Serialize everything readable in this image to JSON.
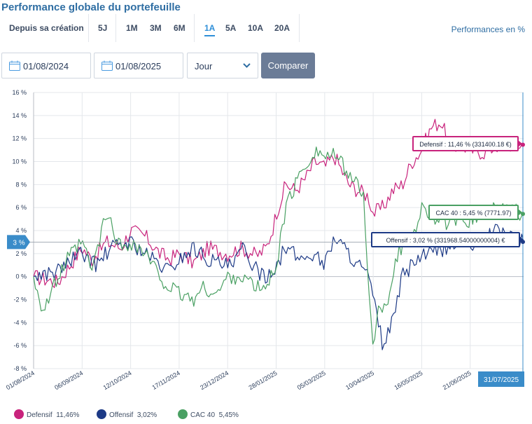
{
  "title": "Performance globale du portefeuille",
  "periods": [
    {
      "label": "Depuis sa création",
      "active": false
    },
    {
      "label": "5J",
      "active": false
    },
    {
      "label": "1M",
      "active": false
    },
    {
      "label": "3M",
      "active": false
    },
    {
      "label": "6M",
      "active": false
    },
    {
      "label": "1A",
      "active": true
    },
    {
      "label": "5A",
      "active": false
    },
    {
      "label": "10A",
      "active": false
    },
    {
      "label": "20A",
      "active": false
    }
  ],
  "perf_toggle": "Performances en %",
  "controls": {
    "start_date": "01/08/2024",
    "end_date": "01/08/2025",
    "granularity": "Jour",
    "compare_label": "Comparer"
  },
  "colors": {
    "defensif": "#c8237c",
    "offensif": "#1d3a86",
    "cac40": "#4aa063",
    "accent": "#2f8fd8",
    "crosshair": "#3a8cc9"
  },
  "crosshair": {
    "y_label": "3 %",
    "x_label": "31/07/2025"
  },
  "legend": [
    {
      "name": "Defensif",
      "value": "11,46%",
      "color": "#c8237c"
    },
    {
      "name": "Offensif",
      "value": "3,02%",
      "color": "#1d3a86"
    },
    {
      "name": "CAC 40",
      "value": "5,45%",
      "color": "#4aa063"
    }
  ],
  "chart_data": {
    "type": "line",
    "ylim": [
      -8,
      16
    ],
    "yticks": [
      -8,
      -6,
      -4,
      -2,
      0,
      2,
      4,
      6,
      8,
      10,
      12,
      14,
      16
    ],
    "ytick_labels": [
      "-8 %",
      "-6 %",
      "-4 %",
      "-2 %",
      "0 %",
      "2 %",
      "4 %",
      "6 %",
      "8 %",
      "10 %",
      "12 %",
      "14 %",
      "16 %"
    ],
    "x_categories": [
      "01/08/2024",
      "06/09/2024",
      "12/10/2024",
      "17/11/2024",
      "23/12/2024",
      "28/01/2025",
      "05/03/2025",
      "10/04/2025",
      "16/05/2025",
      "21/06/2025"
    ],
    "grid": true,
    "series": [
      {
        "name": "Defensif",
        "color": "#c8237c",
        "x": [
          0,
          0.5,
          1,
          1.2,
          1.5,
          1.8,
          2,
          2.3,
          2.6,
          2.8,
          3,
          3.3,
          3.6,
          4,
          4.3,
          4.6,
          4.8,
          4.95,
          5,
          5.2,
          5.4,
          5.6,
          5.8,
          6,
          6.2,
          6.5,
          6.7,
          6.9,
          7,
          7.2,
          7.4,
          7.6,
          7.8,
          8,
          8.2,
          8.4,
          8.6,
          8.8,
          9,
          9.3,
          9.6,
          10.1
        ],
        "values": [
          0,
          -0.5,
          2.5,
          1.5,
          3,
          2.5,
          4,
          3.5,
          2,
          1.5,
          2,
          1.2,
          2.5,
          2,
          2.5,
          1.8,
          2.5,
          4.5,
          5.5,
          8,
          7.5,
          8.5,
          10,
          9.5,
          10.5,
          8,
          7.5,
          7,
          5.5,
          6,
          7.5,
          8,
          10,
          11,
          13,
          13.5,
          11,
          11.5,
          11,
          10.8,
          11.5,
          11.46
        ]
      },
      {
        "name": "Offensif",
        "color": "#1d3a86",
        "x": [
          0,
          0.5,
          0.8,
          1,
          1.3,
          1.6,
          2,
          2.3,
          2.6,
          2.8,
          3,
          3.3,
          3.6,
          3.9,
          4.1,
          4.3,
          4.6,
          4.8,
          5,
          5.2,
          5.5,
          5.8,
          6,
          6.2,
          6.5,
          6.7,
          6.9,
          7,
          7.2,
          7.4,
          7.6,
          7.9,
          8.2,
          8.5,
          8.8,
          9,
          9.3,
          9.6,
          10.1
        ],
        "values": [
          0,
          0.5,
          1.5,
          2,
          1,
          2.5,
          3,
          2,
          1,
          0.5,
          1.5,
          2.5,
          1.5,
          1,
          0.8,
          2.5,
          0.5,
          0,
          1,
          2.5,
          1.5,
          2,
          1,
          3.5,
          2,
          1,
          0,
          -2,
          -6,
          -4,
          0,
          1.5,
          2,
          2.5,
          3,
          2.5,
          3.5,
          4,
          3.02
        ]
      },
      {
        "name": "CAC 40",
        "color": "#4aa063",
        "x": [
          0,
          0.2,
          0.4,
          0.7,
          1,
          1.2,
          1.5,
          1.8,
          2,
          2.3,
          2.6,
          2.8,
          3,
          3.3,
          3.5,
          3.8,
          4,
          4.3,
          4.6,
          4.8,
          5,
          5.2,
          5.5,
          5.8,
          6,
          6.2,
          6.5,
          6.8,
          6.9,
          7,
          7.1,
          7.3,
          7.5,
          7.8,
          8,
          8.3,
          8.6,
          9,
          9.3,
          9.6,
          10.1
        ],
        "values": [
          0,
          -3,
          -1,
          1.5,
          3,
          0.5,
          5.5,
          2.5,
          3,
          2,
          0,
          -1,
          -1.5,
          -2,
          -1,
          -1.5,
          0,
          0,
          -1,
          -1,
          1,
          6,
          9,
          11,
          10.5,
          10.5,
          9,
          7,
          0,
          -6.8,
          -3,
          -2,
          2,
          3.5,
          6,
          5,
          4.5,
          5,
          5.5,
          6,
          5.45
        ]
      }
    ],
    "tooltips": [
      {
        "series": "Defensif",
        "text": "Defensif : 11,46 % (331400.18 €)"
      },
      {
        "series": "CAC 40",
        "text": "CAC 40 : 5,45 % (7771.97)"
      },
      {
        "series": "Offensif",
        "text": "Offensif : 3,02 % (331968.54000000004) €"
      }
    ]
  }
}
